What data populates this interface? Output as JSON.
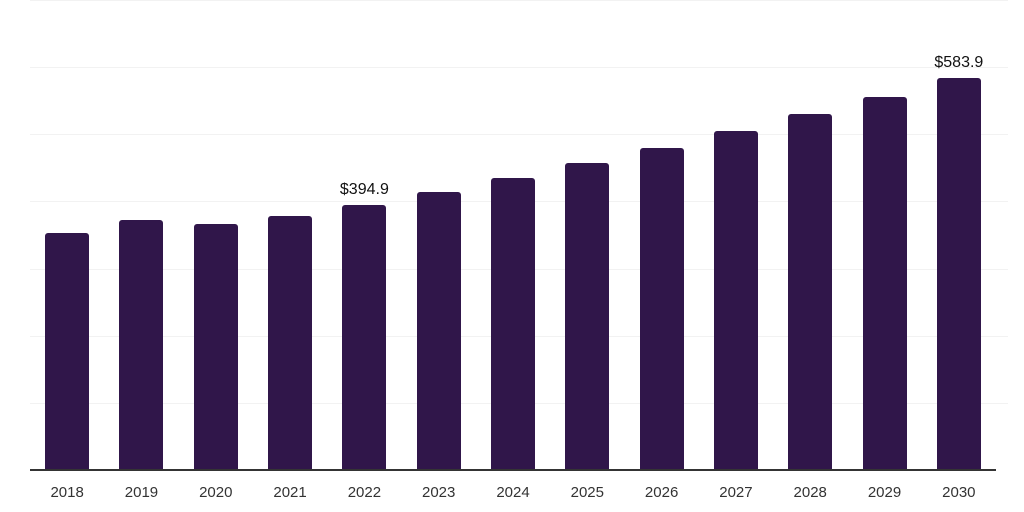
{
  "chart_data": {
    "type": "bar",
    "title": "",
    "xlabel": "",
    "ylabel": "",
    "categories": [
      "2018",
      "2019",
      "2020",
      "2021",
      "2022",
      "2023",
      "2024",
      "2025",
      "2026",
      "2027",
      "2028",
      "2029",
      "2030"
    ],
    "values": [
      353.2,
      372.4,
      366.6,
      378.6,
      394.9,
      414.7,
      435.5,
      457.3,
      480.2,
      504.3,
      529.5,
      556.0,
      583.9
    ],
    "bar_labels": [
      "",
      "",
      "",
      "",
      "$394.9",
      "",
      "",
      "",
      "",
      "",
      "",
      "",
      "$583.9"
    ],
    "currency_prefix": "$",
    "ylim": [
      0,
      700
    ],
    "grid": "horizontal",
    "gridline_interval": 100,
    "legend_position": "none",
    "colors": {
      "bar": "#30164a",
      "gridline": "#f2f2f2",
      "axis_line": "#343434",
      "tick_label": "#333333",
      "data_label": "#111111",
      "background": "#ffffff"
    }
  }
}
